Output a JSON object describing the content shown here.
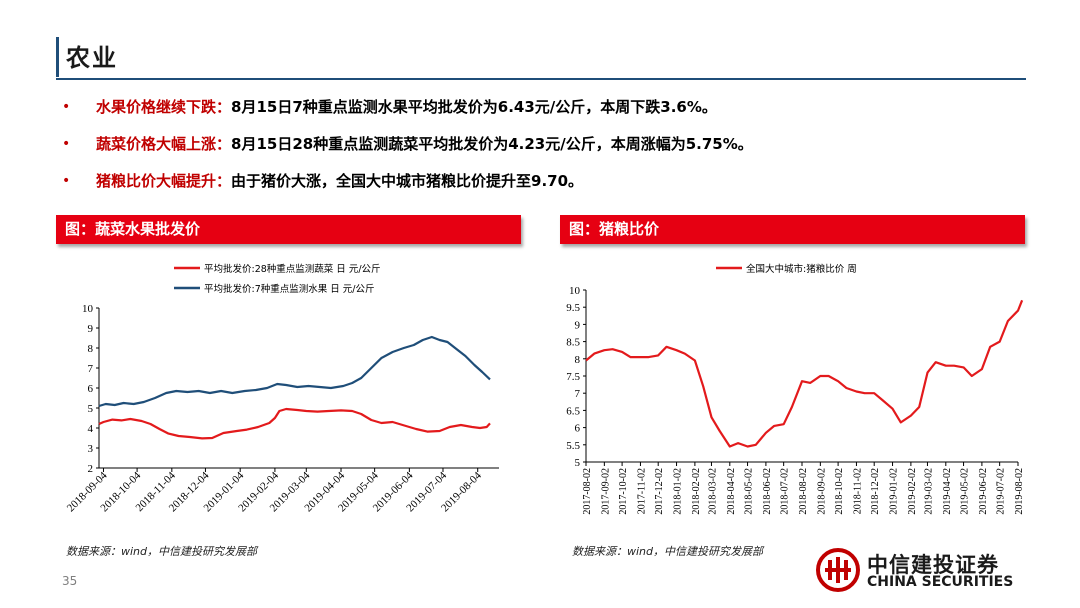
{
  "page": {
    "title": "农业",
    "page_number": "35"
  },
  "bullets": [
    {
      "head": "水果价格继续下跌：",
      "body": "8月15日7种重点监测水果平均批发价为6.43元/公斤，本周下跌3.6%。"
    },
    {
      "head": "蔬菜价格大幅上涨：",
      "body": "8月15日28种重点监测蔬菜平均批发价为4.23元/公斤，本周涨幅为5.75%。"
    },
    {
      "head": "猪粮比价大幅提升：",
      "body": "由于猪价大涨，全国大中城市猪粮比价提升至9.70。"
    }
  ],
  "panels": {
    "left": {
      "heading": "图：蔬菜水果批发价",
      "source": "数据来源：wind，中信建投研究发展部"
    },
    "right": {
      "heading": "图：猪粮比价",
      "source": "数据来源：wind，中信建投研究发展部"
    }
  },
  "logo": {
    "cn": "中信建投证券",
    "en": "CHINA SECURITIES"
  },
  "colors": {
    "accent_red": "#e60012",
    "navy": "#1f4e79",
    "veg": "#e31a1c",
    "fruit": "#1f4e79"
  },
  "chart_data": [
    {
      "type": "line",
      "title": "",
      "xlabel": "",
      "ylabel": "",
      "ylim": [
        2,
        10
      ],
      "yticks": [
        "2",
        "3",
        "4",
        "5",
        "6",
        "7",
        "8",
        "9",
        "10"
      ],
      "xlim": [
        "2018-08-31",
        "2019-08-23"
      ],
      "xticks": [
        "2018-09-04",
        "2018-10-04",
        "2018-11-04",
        "2018-12-04",
        "2019-01-04",
        "2019-02-04",
        "2019-03-04",
        "2019-04-04",
        "2019-05-04",
        "2019-06-04",
        "2019-07-04",
        "2019-08-04"
      ],
      "legend_position": "top",
      "grid": false,
      "series": [
        {
          "name": "平均批发价:28种重点监测蔬菜 日 元/公斤",
          "color": "#e31a1c",
          "points": [
            [
              "2018-08-31",
              4.2
            ],
            [
              "2018-09-04",
              4.3
            ],
            [
              "2018-09-12",
              4.42
            ],
            [
              "2018-09-20",
              4.38
            ],
            [
              "2018-09-28",
              4.45
            ],
            [
              "2018-10-08",
              4.35
            ],
            [
              "2018-10-16",
              4.2
            ],
            [
              "2018-10-24",
              3.95
            ],
            [
              "2018-11-01",
              3.72
            ],
            [
              "2018-11-10",
              3.6
            ],
            [
              "2018-11-20",
              3.55
            ],
            [
              "2018-12-01",
              3.48
            ],
            [
              "2018-12-10",
              3.5
            ],
            [
              "2018-12-20",
              3.75
            ],
            [
              "2019-01-01",
              3.85
            ],
            [
              "2019-01-10",
              3.92
            ],
            [
              "2019-01-20",
              4.05
            ],
            [
              "2019-01-30",
              4.25
            ],
            [
              "2019-02-04",
              4.5
            ],
            [
              "2019-02-08",
              4.85
            ],
            [
              "2019-02-14",
              4.95
            ],
            [
              "2019-02-24",
              4.9
            ],
            [
              "2019-03-04",
              4.85
            ],
            [
              "2019-03-14",
              4.82
            ],
            [
              "2019-03-24",
              4.85
            ],
            [
              "2019-04-04",
              4.88
            ],
            [
              "2019-04-14",
              4.85
            ],
            [
              "2019-04-22",
              4.7
            ],
            [
              "2019-05-01",
              4.4
            ],
            [
              "2019-05-10",
              4.25
            ],
            [
              "2019-05-20",
              4.3
            ],
            [
              "2019-06-01",
              4.1
            ],
            [
              "2019-06-10",
              3.95
            ],
            [
              "2019-06-20",
              3.82
            ],
            [
              "2019-07-01",
              3.85
            ],
            [
              "2019-07-10",
              4.05
            ],
            [
              "2019-07-20",
              4.15
            ],
            [
              "2019-07-30",
              4.05
            ],
            [
              "2019-08-06",
              4.0
            ],
            [
              "2019-08-12",
              4.05
            ],
            [
              "2019-08-15",
              4.23
            ]
          ]
        },
        {
          "name": "平均批发价:7种重点监测水果 日 元/公斤",
          "color": "#1f4e79",
          "points": [
            [
              "2018-08-31",
              5.1
            ],
            [
              "2018-09-06",
              5.2
            ],
            [
              "2018-09-14",
              5.15
            ],
            [
              "2018-09-22",
              5.25
            ],
            [
              "2018-10-01",
              5.2
            ],
            [
              "2018-10-10",
              5.3
            ],
            [
              "2018-10-20",
              5.5
            ],
            [
              "2018-10-30",
              5.75
            ],
            [
              "2018-11-08",
              5.85
            ],
            [
              "2018-11-18",
              5.8
            ],
            [
              "2018-11-28",
              5.85
            ],
            [
              "2018-12-08",
              5.75
            ],
            [
              "2018-12-18",
              5.85
            ],
            [
              "2018-12-28",
              5.75
            ],
            [
              "2019-01-08",
              5.85
            ],
            [
              "2019-01-18",
              5.9
            ],
            [
              "2019-01-28",
              6.0
            ],
            [
              "2019-02-06",
              6.2
            ],
            [
              "2019-02-14",
              6.15
            ],
            [
              "2019-02-24",
              6.05
            ],
            [
              "2019-03-06",
              6.1
            ],
            [
              "2019-03-16",
              6.05
            ],
            [
              "2019-03-26",
              6.0
            ],
            [
              "2019-04-06",
              6.1
            ],
            [
              "2019-04-14",
              6.25
            ],
            [
              "2019-04-22",
              6.5
            ],
            [
              "2019-05-01",
              7.0
            ],
            [
              "2019-05-10",
              7.5
            ],
            [
              "2019-05-20",
              7.8
            ],
            [
              "2019-05-30",
              8.0
            ],
            [
              "2019-06-08",
              8.15
            ],
            [
              "2019-06-16",
              8.4
            ],
            [
              "2019-06-24",
              8.55
            ],
            [
              "2019-07-01",
              8.4
            ],
            [
              "2019-07-08",
              8.3
            ],
            [
              "2019-07-16",
              7.95
            ],
            [
              "2019-07-24",
              7.6
            ],
            [
              "2019-08-01",
              7.15
            ],
            [
              "2019-08-08",
              6.8
            ],
            [
              "2019-08-15",
              6.43
            ]
          ]
        }
      ]
    },
    {
      "type": "line",
      "title": "",
      "xlabel": "",
      "ylabel": "",
      "ylim": [
        5,
        10
      ],
      "yticks": [
        "5",
        "5.5",
        "6",
        "6.5",
        "7",
        "7.5",
        "8",
        "8.5",
        "9",
        "9.5",
        "10"
      ],
      "xticks": [
        "2017-08-02",
        "2017-09-02",
        "2017-10-02",
        "2017-11-02",
        "2017-12-02",
        "2018-01-02",
        "2018-02-02",
        "2018-03-02",
        "2018-04-02",
        "2018-05-02",
        "2018-06-02",
        "2018-07-02",
        "2018-08-02",
        "2018-09-02",
        "2018-10-02",
        "2018-11-02",
        "2018-12-02",
        "2019-01-02",
        "2019-02-02",
        "2019-03-02",
        "2019-04-02",
        "2019-05-02",
        "2019-06-02",
        "2019-07-02",
        "2019-08-02"
      ],
      "legend_position": "top",
      "grid": false,
      "series": [
        {
          "name": "全国大中城市:猪粮比价 周",
          "color": "#e31a1c",
          "points": [
            [
              "2017-08-02",
              7.95
            ],
            [
              "2017-08-16",
              8.15
            ],
            [
              "2017-09-02",
              8.25
            ],
            [
              "2017-09-16",
              8.28
            ],
            [
              "2017-10-02",
              8.2
            ],
            [
              "2017-10-16",
              8.05
            ],
            [
              "2017-11-02",
              8.05
            ],
            [
              "2017-11-16",
              8.05
            ],
            [
              "2017-12-02",
              8.1
            ],
            [
              "2017-12-16",
              8.35
            ],
            [
              "2018-01-02",
              8.25
            ],
            [
              "2018-01-16",
              8.15
            ],
            [
              "2018-02-02",
              7.95
            ],
            [
              "2018-02-16",
              7.2
            ],
            [
              "2018-03-02",
              6.3
            ],
            [
              "2018-03-16",
              5.9
            ],
            [
              "2018-04-02",
              5.45
            ],
            [
              "2018-04-16",
              5.55
            ],
            [
              "2018-05-02",
              5.45
            ],
            [
              "2018-05-16",
              5.5
            ],
            [
              "2018-06-02",
              5.85
            ],
            [
              "2018-06-16",
              6.05
            ],
            [
              "2018-07-02",
              6.1
            ],
            [
              "2018-07-16",
              6.6
            ],
            [
              "2018-08-02",
              7.35
            ],
            [
              "2018-08-16",
              7.3
            ],
            [
              "2018-09-02",
              7.5
            ],
            [
              "2018-09-16",
              7.5
            ],
            [
              "2018-10-02",
              7.35
            ],
            [
              "2018-10-16",
              7.15
            ],
            [
              "2018-11-02",
              7.05
            ],
            [
              "2018-11-16",
              7.0
            ],
            [
              "2018-12-02",
              7.0
            ],
            [
              "2018-12-16",
              6.8
            ],
            [
              "2019-01-02",
              6.55
            ],
            [
              "2019-01-16",
              6.15
            ],
            [
              "2019-02-02",
              6.35
            ],
            [
              "2019-02-16",
              6.6
            ],
            [
              "2019-03-02",
              7.6
            ],
            [
              "2019-03-16",
              7.9
            ],
            [
              "2019-04-02",
              7.8
            ],
            [
              "2019-04-16",
              7.8
            ],
            [
              "2019-05-02",
              7.75
            ],
            [
              "2019-05-16",
              7.5
            ],
            [
              "2019-06-02",
              7.7
            ],
            [
              "2019-06-16",
              8.35
            ],
            [
              "2019-07-02",
              8.5
            ],
            [
              "2019-07-16",
              9.1
            ],
            [
              "2019-08-02",
              9.4
            ],
            [
              "2019-08-09",
              9.7
            ]
          ]
        }
      ]
    }
  ]
}
